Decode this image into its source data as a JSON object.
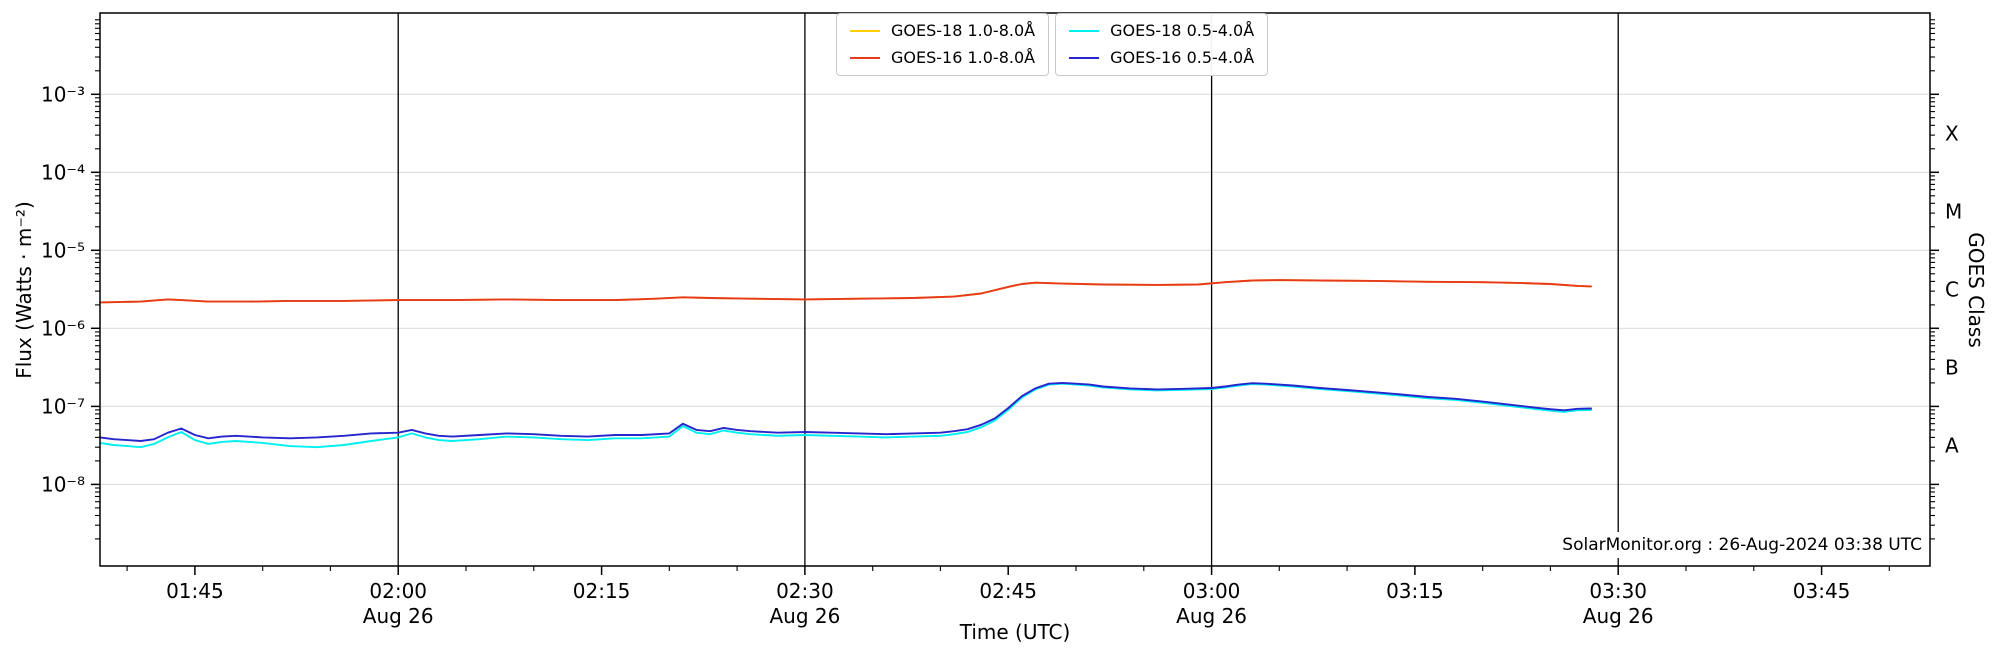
{
  "annotation": {
    "text": "SolarMonitor.org : 26-Aug-2024 03:38 UTC"
  },
  "chart_data": {
    "type": "line",
    "title": "",
    "xlabel": "Time (UTC)",
    "ylabel": "Flux (Watts · m⁻²)",
    "ylabel_right": "GOES Class",
    "x_unit": "minutes after 00:00 UTC 26-Aug-2024",
    "x_range": [
      98,
      233
    ],
    "y_range": [
      9e-10,
      0.011
    ],
    "y_scale": "log",
    "grid": "horizontal-decades",
    "legend_position": "top-center",
    "style": {
      "grid_color": "#d9d9d9",
      "frame_color": "#000000",
      "day_line_color": "#000000"
    },
    "x_ticks": [
      {
        "t": 105,
        "label": "01:45"
      },
      {
        "t": 120,
        "label": "02:00",
        "sub": "Aug 26"
      },
      {
        "t": 135,
        "label": "02:15"
      },
      {
        "t": 150,
        "label": "02:30",
        "sub": "Aug 26"
      },
      {
        "t": 165,
        "label": "02:45"
      },
      {
        "t": 180,
        "label": "03:00",
        "sub": "Aug 26"
      },
      {
        "t": 195,
        "label": "03:15"
      },
      {
        "t": 210,
        "label": "03:30",
        "sub": "Aug 26"
      },
      {
        "t": 225,
        "label": "03:45"
      }
    ],
    "day_lines": [
      120,
      150,
      180,
      210
    ],
    "y_ticks": [
      {
        "v": 0.001,
        "label": "10⁻³"
      },
      {
        "v": 0.0001,
        "label": "10⁻⁴"
      },
      {
        "v": 1e-05,
        "label": "10⁻⁵"
      },
      {
        "v": 1e-06,
        "label": "10⁻⁶"
      },
      {
        "v": 1e-07,
        "label": "10⁻⁷"
      },
      {
        "v": 1e-08,
        "label": "10⁻⁸"
      }
    ],
    "class_labels": [
      {
        "label": "X",
        "v": 0.000316
      },
      {
        "label": "M",
        "v": 3.16e-05
      },
      {
        "label": "C",
        "v": 3.16e-06
      },
      {
        "label": "B",
        "v": 3.16e-07
      },
      {
        "label": "A",
        "v": 3.16e-08
      }
    ],
    "series": [
      {
        "id": "goes18-long",
        "name": "GOES-18 1.0-8.0Å",
        "color": "#ffcf00",
        "points": [
          [
            98,
            2.15e-06
          ],
          [
            101,
            2.2e-06
          ],
          [
            103,
            2.35e-06
          ],
          [
            104,
            2.3e-06
          ],
          [
            106,
            2.2e-06
          ],
          [
            109,
            2.2e-06
          ],
          [
            112,
            2.25e-06
          ],
          [
            116,
            2.25e-06
          ],
          [
            120,
            2.3e-06
          ],
          [
            124,
            2.3e-06
          ],
          [
            128,
            2.35e-06
          ],
          [
            132,
            2.3e-06
          ],
          [
            136,
            2.3e-06
          ],
          [
            139,
            2.4e-06
          ],
          [
            141,
            2.5e-06
          ],
          [
            143,
            2.45e-06
          ],
          [
            146,
            2.4e-06
          ],
          [
            150,
            2.35e-06
          ],
          [
            154,
            2.4e-06
          ],
          [
            158,
            2.45e-06
          ],
          [
            161,
            2.55e-06
          ],
          [
            163,
            2.8e-06
          ],
          [
            165,
            3.4e-06
          ],
          [
            166,
            3.7e-06
          ],
          [
            167,
            3.85e-06
          ],
          [
            169,
            3.75e-06
          ],
          [
            172,
            3.65e-06
          ],
          [
            176,
            3.6e-06
          ],
          [
            179,
            3.65e-06
          ],
          [
            181,
            3.9e-06
          ],
          [
            183,
            4.1e-06
          ],
          [
            185,
            4.15e-06
          ],
          [
            188,
            4.1e-06
          ],
          [
            192,
            4.05e-06
          ],
          [
            196,
            3.95e-06
          ],
          [
            200,
            3.9e-06
          ],
          [
            203,
            3.8e-06
          ],
          [
            205,
            3.7e-06
          ],
          [
            207,
            3.5e-06
          ],
          [
            208,
            3.45e-06
          ]
        ]
      },
      {
        "id": "goes16-long",
        "name": "GOES-16 1.0-8.0Å",
        "color": "#e6391e",
        "points": [
          [
            98,
            2.15e-06
          ],
          [
            101,
            2.2e-06
          ],
          [
            103,
            2.35e-06
          ],
          [
            104,
            2.3e-06
          ],
          [
            106,
            2.2e-06
          ],
          [
            109,
            2.2e-06
          ],
          [
            112,
            2.25e-06
          ],
          [
            116,
            2.25e-06
          ],
          [
            120,
            2.3e-06
          ],
          [
            124,
            2.3e-06
          ],
          [
            128,
            2.35e-06
          ],
          [
            132,
            2.3e-06
          ],
          [
            136,
            2.3e-06
          ],
          [
            139,
            2.4e-06
          ],
          [
            141,
            2.5e-06
          ],
          [
            143,
            2.45e-06
          ],
          [
            146,
            2.4e-06
          ],
          [
            150,
            2.35e-06
          ],
          [
            154,
            2.4e-06
          ],
          [
            158,
            2.45e-06
          ],
          [
            161,
            2.55e-06
          ],
          [
            163,
            2.8e-06
          ],
          [
            165,
            3.4e-06
          ],
          [
            166,
            3.7e-06
          ],
          [
            167,
            3.85e-06
          ],
          [
            169,
            3.75e-06
          ],
          [
            172,
            3.65e-06
          ],
          [
            176,
            3.6e-06
          ],
          [
            179,
            3.65e-06
          ],
          [
            181,
            3.9e-06
          ],
          [
            183,
            4.1e-06
          ],
          [
            185,
            4.15e-06
          ],
          [
            188,
            4.1e-06
          ],
          [
            192,
            4.05e-06
          ],
          [
            196,
            3.95e-06
          ],
          [
            200,
            3.9e-06
          ],
          [
            203,
            3.8e-06
          ],
          [
            205,
            3.7e-06
          ],
          [
            207,
            3.5e-06
          ],
          [
            208,
            3.45e-06
          ]
        ]
      },
      {
        "id": "goes18-short",
        "name": "GOES-18 0.5-4.0Å",
        "color": "#00f0f0",
        "points": [
          [
            98,
            3.4e-08
          ],
          [
            99,
            3.2e-08
          ],
          [
            100,
            3.1e-08
          ],
          [
            101,
            3e-08
          ],
          [
            102,
            3.3e-08
          ],
          [
            103,
            4e-08
          ],
          [
            104,
            4.7e-08
          ],
          [
            105,
            3.7e-08
          ],
          [
            106,
            3.3e-08
          ],
          [
            107,
            3.5e-08
          ],
          [
            108,
            3.6e-08
          ],
          [
            110,
            3.4e-08
          ],
          [
            112,
            3.1e-08
          ],
          [
            114,
            3e-08
          ],
          [
            116,
            3.2e-08
          ],
          [
            118,
            3.6e-08
          ],
          [
            120,
            4e-08
          ],
          [
            121,
            4.5e-08
          ],
          [
            122,
            4e-08
          ],
          [
            123,
            3.7e-08
          ],
          [
            124,
            3.6e-08
          ],
          [
            126,
            3.8e-08
          ],
          [
            128,
            4.1e-08
          ],
          [
            130,
            4e-08
          ],
          [
            132,
            3.8e-08
          ],
          [
            134,
            3.7e-08
          ],
          [
            136,
            3.9e-08
          ],
          [
            138,
            3.9e-08
          ],
          [
            140,
            4.1e-08
          ],
          [
            141,
            5.6e-08
          ],
          [
            142,
            4.6e-08
          ],
          [
            143,
            4.4e-08
          ],
          [
            144,
            4.9e-08
          ],
          [
            145,
            4.6e-08
          ],
          [
            146,
            4.4e-08
          ],
          [
            148,
            4.2e-08
          ],
          [
            150,
            4.3e-08
          ],
          [
            152,
            4.2e-08
          ],
          [
            154,
            4.1e-08
          ],
          [
            156,
            4e-08
          ],
          [
            158,
            4.1e-08
          ],
          [
            160,
            4.2e-08
          ],
          [
            161,
            4.4e-08
          ],
          [
            162,
            4.7e-08
          ],
          [
            163,
            5.4e-08
          ],
          [
            164,
            6.6e-08
          ],
          [
            165,
            9e-08
          ],
          [
            166,
            1.3e-07
          ],
          [
            167,
            1.65e-07
          ],
          [
            168,
            1.9e-07
          ],
          [
            169,
            1.95e-07
          ],
          [
            170,
            1.9e-07
          ],
          [
            171,
            1.85e-07
          ],
          [
            172,
            1.75e-07
          ],
          [
            174,
            1.65e-07
          ],
          [
            176,
            1.6e-07
          ],
          [
            178,
            1.63e-07
          ],
          [
            180,
            1.67e-07
          ],
          [
            181,
            1.75e-07
          ],
          [
            182,
            1.85e-07
          ],
          [
            183,
            1.93e-07
          ],
          [
            184,
            1.9e-07
          ],
          [
            185,
            1.85e-07
          ],
          [
            186,
            1.8e-07
          ],
          [
            188,
            1.67e-07
          ],
          [
            190,
            1.57e-07
          ],
          [
            192,
            1.47e-07
          ],
          [
            194,
            1.37e-07
          ],
          [
            196,
            1.27e-07
          ],
          [
            198,
            1.21e-07
          ],
          [
            200,
            1.11e-07
          ],
          [
            202,
            1.01e-07
          ],
          [
            204,
            9.2e-08
          ],
          [
            205,
            8.8e-08
          ],
          [
            206,
            8.5e-08
          ],
          [
            207,
            8.9e-08
          ],
          [
            208,
            9e-08
          ]
        ]
      },
      {
        "id": "goes16-short",
        "name": "GOES-16 0.5-4.0Å",
        "color": "#2626cc",
        "points": [
          [
            98,
            4e-08
          ],
          [
            99,
            3.8e-08
          ],
          [
            100,
            3.7e-08
          ],
          [
            101,
            3.6e-08
          ],
          [
            102,
            3.8e-08
          ],
          [
            103,
            4.6e-08
          ],
          [
            104,
            5.2e-08
          ],
          [
            105,
            4.3e-08
          ],
          [
            106,
            3.9e-08
          ],
          [
            107,
            4.1e-08
          ],
          [
            108,
            4.2e-08
          ],
          [
            110,
            4e-08
          ],
          [
            112,
            3.9e-08
          ],
          [
            114,
            4e-08
          ],
          [
            116,
            4.2e-08
          ],
          [
            118,
            4.5e-08
          ],
          [
            120,
            4.6e-08
          ],
          [
            121,
            5e-08
          ],
          [
            122,
            4.5e-08
          ],
          [
            123,
            4.2e-08
          ],
          [
            124,
            4.1e-08
          ],
          [
            126,
            4.3e-08
          ],
          [
            128,
            4.5e-08
          ],
          [
            130,
            4.4e-08
          ],
          [
            132,
            4.2e-08
          ],
          [
            134,
            4.1e-08
          ],
          [
            136,
            4.3e-08
          ],
          [
            138,
            4.3e-08
          ],
          [
            140,
            4.5e-08
          ],
          [
            141,
            6e-08
          ],
          [
            142,
            5e-08
          ],
          [
            143,
            4.8e-08
          ],
          [
            144,
            5.3e-08
          ],
          [
            145,
            5e-08
          ],
          [
            146,
            4.8e-08
          ],
          [
            148,
            4.6e-08
          ],
          [
            150,
            4.7e-08
          ],
          [
            152,
            4.6e-08
          ],
          [
            154,
            4.5e-08
          ],
          [
            156,
            4.4e-08
          ],
          [
            158,
            4.5e-08
          ],
          [
            160,
            4.6e-08
          ],
          [
            161,
            4.8e-08
          ],
          [
            162,
            5.1e-08
          ],
          [
            163,
            5.8e-08
          ],
          [
            164,
            7e-08
          ],
          [
            165,
            9.5e-08
          ],
          [
            166,
            1.35e-07
          ],
          [
            167,
            1.7e-07
          ],
          [
            168,
            1.95e-07
          ],
          [
            169,
            2e-07
          ],
          [
            170,
            1.95e-07
          ],
          [
            171,
            1.9e-07
          ],
          [
            172,
            1.8e-07
          ],
          [
            174,
            1.7e-07
          ],
          [
            176,
            1.65e-07
          ],
          [
            178,
            1.68e-07
          ],
          [
            180,
            1.72e-07
          ],
          [
            181,
            1.8e-07
          ],
          [
            182,
            1.9e-07
          ],
          [
            183,
            1.98e-07
          ],
          [
            184,
            1.95e-07
          ],
          [
            185,
            1.9e-07
          ],
          [
            186,
            1.85e-07
          ],
          [
            188,
            1.72e-07
          ],
          [
            190,
            1.62e-07
          ],
          [
            192,
            1.52e-07
          ],
          [
            194,
            1.42e-07
          ],
          [
            196,
            1.32e-07
          ],
          [
            198,
            1.25e-07
          ],
          [
            200,
            1.15e-07
          ],
          [
            202,
            1.05e-07
          ],
          [
            204,
            9.6e-08
          ],
          [
            205,
            9.2e-08
          ],
          [
            206,
            8.9e-08
          ],
          [
            207,
            9.3e-08
          ],
          [
            208,
            9.4e-08
          ]
        ]
      }
    ]
  }
}
